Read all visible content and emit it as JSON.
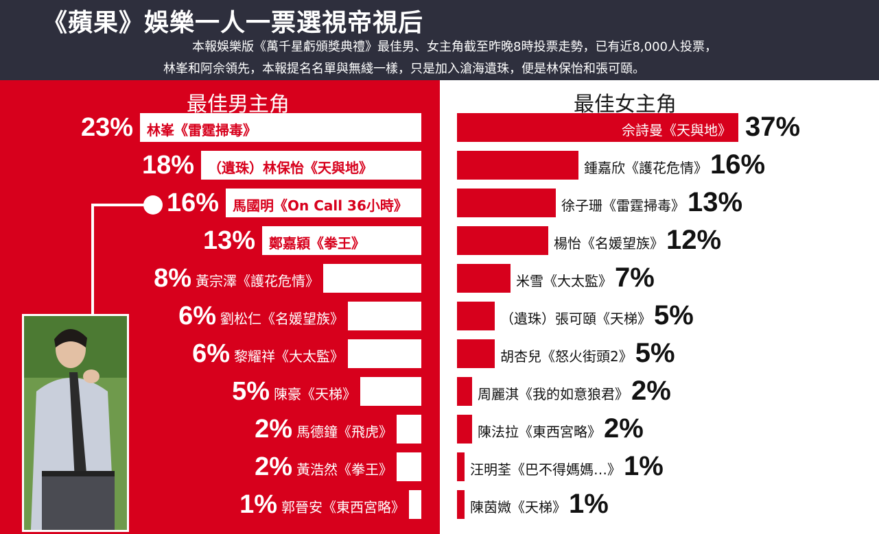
{
  "header": {
    "title": "《蘋果》娛樂一人一票選視帝視后",
    "subtitle_line1": "本報娛樂版《萬千星虧頒獎典禮》最佳男、女主角截至昨晚8時投票走勢，已有近8,000人投票，",
    "subtitle_line2": "林峯和阿佘領先，本報提名名單與無綫一樣，只是加入滄海遺珠，便是林保怡和張可頤。"
  },
  "colors": {
    "accent_red": "#d7001c",
    "header_bg": "#2e2f3d",
    "white": "#ffffff"
  },
  "photo": {
    "alt": "actor-photo"
  },
  "chart_data": [
    {
      "type": "bar",
      "title": "最佳男主角",
      "categories": [
        "林峯《雷霆掃毒》",
        "（遺珠）林保怡《天與地》",
        "馬國明《On Call 36小時》",
        "鄭嘉穎《拳王》",
        "黃宗澤《護花危情》",
        "劉松仁《名媛望族》",
        "黎耀祥《大太監》",
        "陳豪《天梯》",
        "馬德鐘《飛虎》",
        "黃浩然《拳王》",
        "郭晉安《東西宮略》"
      ],
      "values": [
        23,
        18,
        16,
        13,
        8,
        6,
        6,
        5,
        2,
        2,
        1
      ],
      "labels": [
        "23%",
        "18%",
        "16%",
        "13%",
        "8%",
        "6%",
        "6%",
        "5%",
        "2%",
        "2%",
        "1%"
      ],
      "orientation": "horizontal",
      "direction": "right-aligned"
    },
    {
      "type": "bar",
      "title": "最佳女主角",
      "categories": [
        "佘詩曼《天與地》",
        "鍾嘉欣《護花危情》",
        "徐子珊《雷霆掃毒》",
        "楊怡《名媛望族》",
        "米雪《大太監》",
        "（遺珠）張可頤《天梯》",
        "胡杏兒《怒火街頭2》",
        "周麗淇《我的如意狼君》",
        "陳法拉《東西宮略》",
        "汪明荃《巴不得媽媽…》",
        "陳茵媺《天梯》"
      ],
      "values": [
        37,
        16,
        13,
        12,
        7,
        5,
        5,
        2,
        2,
        1,
        1
      ],
      "labels": [
        "37%",
        "16%",
        "13%",
        "12%",
        "7%",
        "5%",
        "5%",
        "2%",
        "2%",
        "1%",
        "1%"
      ],
      "orientation": "horizontal",
      "direction": "left-aligned"
    }
  ]
}
